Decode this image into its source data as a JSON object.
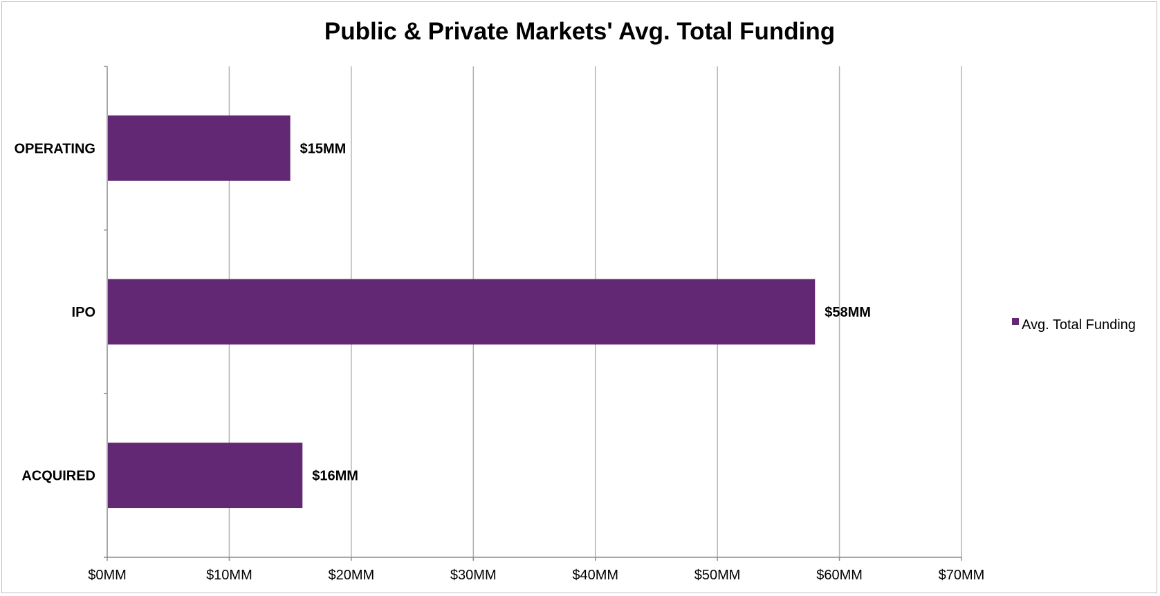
{
  "chart_data": {
    "type": "bar",
    "orientation": "horizontal",
    "title": "Public & Private Markets' Avg. Total Funding",
    "categories": [
      "OPERATING",
      "IPO",
      "ACQUIRED"
    ],
    "series": [
      {
        "name": "Avg. Total Funding",
        "values": [
          15,
          58,
          16
        ],
        "data_labels": [
          "$15MM",
          "$58MM",
          "$16MM"
        ],
        "color": "#632873"
      }
    ],
    "xlabel": "",
    "ylabel": "",
    "xlim": [
      0,
      70
    ],
    "xticks": [
      0,
      10,
      20,
      30,
      40,
      50,
      60,
      70
    ],
    "xtick_labels": [
      "$0MM",
      "$10MM",
      "$20MM",
      "$30MM",
      "$40MM",
      "$50MM",
      "$60MM",
      "$70MM"
    ],
    "grid": "vertical",
    "legend_position": "right"
  },
  "colors": {
    "bar": "#632873",
    "grid": "#b3b3b3",
    "axis": "#8c8c8c"
  }
}
